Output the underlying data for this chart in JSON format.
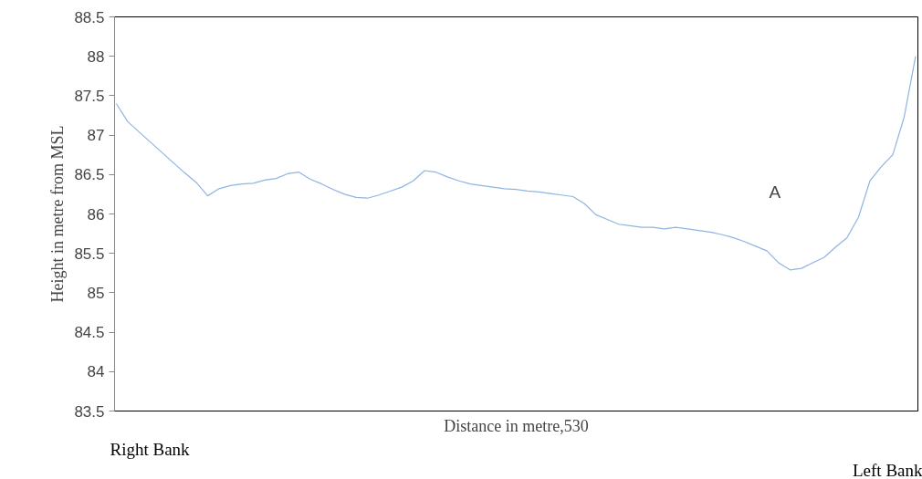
{
  "chart_data": {
    "type": "line",
    "xlabel": "Distance in metre,530",
    "ylabel": "Height in metre from MSL",
    "categories": [
      null,
      null,
      null,
      null,
      null,
      null,
      null,
      null,
      null,
      null,
      null,
      null,
      null,
      null,
      null,
      null,
      null,
      null,
      null,
      null,
      null,
      null,
      null,
      null,
      null,
      null,
      null,
      null,
      null,
      null,
      null,
      null,
      null,
      null,
      null,
      null,
      null,
      null,
      null,
      null,
      null,
      null,
      null,
      null,
      null,
      null,
      null,
      null,
      null,
      null,
      null,
      null,
      null,
      null,
      null,
      null,
      null,
      null,
      null,
      null,
      null,
      null,
      null,
      null,
      null,
      null,
      null,
      null,
      null,
      null,
      null
    ],
    "series": [
      {
        "color": "#8fb4e3",
        "values": [
          87.4,
          87.17,
          87.04,
          86.91,
          86.78,
          86.65,
          86.52,
          86.4,
          86.23,
          86.32,
          86.36,
          86.38,
          86.39,
          86.43,
          86.45,
          86.51,
          86.53,
          86.44,
          86.38,
          86.31,
          86.25,
          86.21,
          86.2,
          86.24,
          86.29,
          86.34,
          86.42,
          86.55,
          86.53,
          86.47,
          86.42,
          86.38,
          86.36,
          86.34,
          86.32,
          86.31,
          86.29,
          86.28,
          86.26,
          86.24,
          86.22,
          86.13,
          85.99,
          85.93,
          85.87,
          85.85,
          85.83,
          85.83,
          85.81,
          85.83,
          85.81,
          85.79,
          85.77,
          85.74,
          85.7,
          85.65,
          85.59,
          85.53,
          85.38,
          85.29,
          85.31,
          85.38,
          85.45,
          85.58,
          85.7,
          85.96,
          86.42,
          86.6,
          86.75,
          87.23,
          88.0
        ]
      }
    ],
    "ylim": [
      83.5,
      88.5
    ],
    "yticks": [
      83.5,
      84,
      84.5,
      85,
      85.5,
      86,
      86.5,
      87,
      87.5,
      88,
      88.5
    ],
    "tick_labels": "y",
    "grid": false,
    "marker": "none",
    "line_style": "solid",
    "annotations": [
      "A",
      "Right Bank",
      "Left Bank"
    ]
  }
}
